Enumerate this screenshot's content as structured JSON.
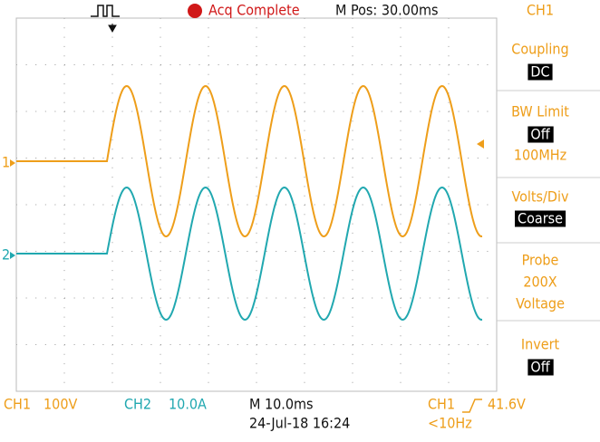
{
  "header": {
    "status": "Acq Complete",
    "position": "M Pos: 30.00ms",
    "channel": "CH1"
  },
  "menu": [
    {
      "lines": [
        {
          "text": "Coupling",
          "highlighted": false
        },
        {
          "text": "DC",
          "highlighted": true
        }
      ]
    },
    {
      "lines": [
        {
          "text": "BW Limit",
          "highlighted": false
        },
        {
          "text": "Off",
          "highlighted": true
        },
        {
          "text": "100MHz",
          "highlighted": false
        }
      ]
    },
    {
      "lines": [
        {
          "text": "Volts/Div",
          "highlighted": false
        },
        {
          "text": "Coarse",
          "highlighted": true
        }
      ]
    },
    {
      "lines": [
        {
          "text": "Probe",
          "highlighted": false
        },
        {
          "text": "200X",
          "highlighted": false
        },
        {
          "text": "Voltage",
          "highlighted": false
        }
      ]
    },
    {
      "lines": [
        {
          "text": "Invert",
          "highlighted": false
        },
        {
          "text": "Off",
          "highlighted": true
        }
      ]
    }
  ],
  "markers": {
    "ch1": "1",
    "ch2": "2"
  },
  "footer": {
    "ch1_name": "CH1",
    "ch1_scale": "100V",
    "ch2_name": "CH2",
    "ch2_scale": "10.0A",
    "timebase": "M 10.0ms",
    "date": "24-Jul-18 16:24",
    "trigger_source": "CH1",
    "trigger_level": "41.6V",
    "frequency": "<10Hz"
  }
}
